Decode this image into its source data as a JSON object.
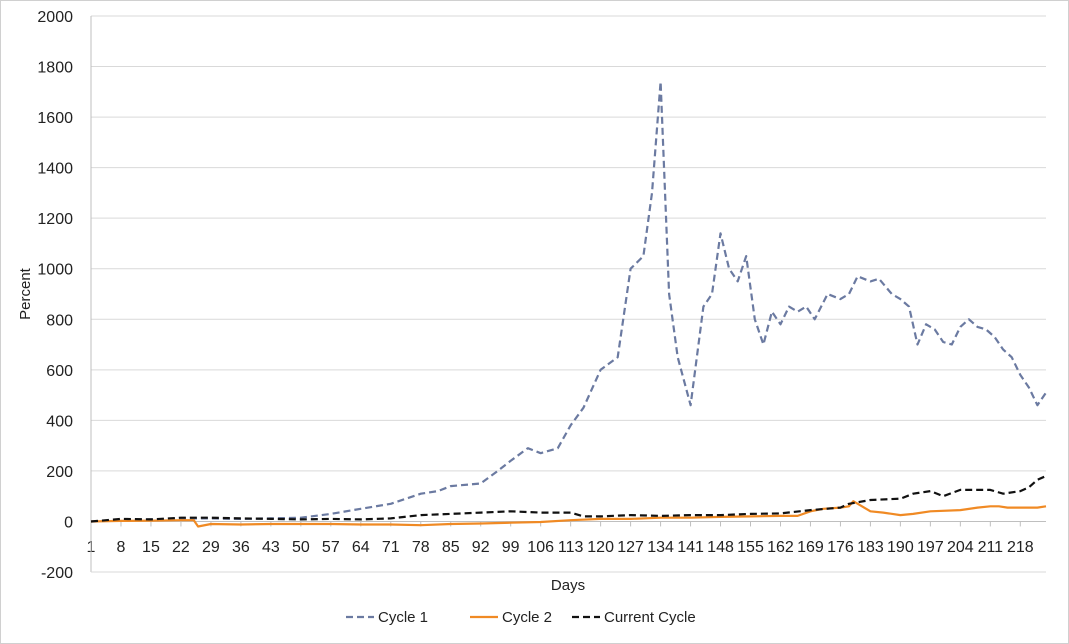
{
  "chart_data": {
    "type": "line",
    "xlabel": "Days",
    "ylabel": "Percent",
    "ylim": [
      -200,
      2000
    ],
    "xlim": [
      1,
      224
    ],
    "y_ticks": [
      -200,
      0,
      200,
      400,
      600,
      800,
      1000,
      1200,
      1400,
      1600,
      1800,
      2000
    ],
    "x_ticks": [
      1,
      8,
      15,
      22,
      29,
      36,
      43,
      50,
      57,
      64,
      71,
      78,
      85,
      92,
      99,
      106,
      113,
      120,
      127,
      134,
      141,
      148,
      155,
      162,
      169,
      176,
      183,
      190,
      197,
      204,
      211,
      218
    ],
    "grid": "horizontal",
    "legend_position": "bottom",
    "series": [
      {
        "name": "Cycle 1",
        "color": "#6b7aa1",
        "dash": "dashed",
        "x": [
          1,
          8,
          15,
          22,
          29,
          36,
          43,
          50,
          57,
          64,
          71,
          78,
          82,
          85,
          92,
          96,
          99,
          103,
          106,
          110,
          113,
          116,
          120,
          124,
          127,
          130,
          132,
          134,
          136,
          138,
          141,
          144,
          146,
          148,
          150,
          152,
          154,
          156,
          158,
          160,
          162,
          164,
          166,
          168,
          170,
          173,
          176,
          178,
          180,
          183,
          185,
          188,
          190,
          192,
          194,
          196,
          198,
          200,
          202,
          204,
          206,
          208,
          210,
          212,
          214,
          216,
          218,
          220,
          222,
          224
        ],
        "y": [
          0,
          5,
          8,
          12,
          12,
          10,
          12,
          15,
          30,
          50,
          70,
          110,
          120,
          140,
          150,
          200,
          240,
          290,
          270,
          290,
          380,
          450,
          600,
          650,
          1000,
          1050,
          1300,
          1740,
          900,
          650,
          460,
          850,
          900,
          1140,
          1000,
          950,
          1050,
          800,
          700,
          830,
          780,
          850,
          830,
          850,
          800,
          900,
          880,
          900,
          970,
          950,
          960,
          900,
          880,
          850,
          700,
          780,
          760,
          710,
          700,
          770,
          800,
          770,
          760,
          730,
          680,
          650,
          580,
          530,
          460,
          510
        ]
      },
      {
        "name": "Cycle 2",
        "color": "#f08a24",
        "dash": "solid",
        "x": [
          1,
          8,
          15,
          22,
          25,
          26,
          29,
          36,
          43,
          50,
          57,
          64,
          71,
          78,
          85,
          92,
          99,
          106,
          113,
          120,
          127,
          134,
          141,
          148,
          155,
          162,
          166,
          169,
          172,
          176,
          178,
          179,
          183,
          186,
          190,
          193,
          197,
          204,
          208,
          211,
          213,
          215,
          218,
          222,
          224
        ],
        "y": [
          0,
          2,
          3,
          5,
          5,
          -20,
          -10,
          -12,
          -10,
          -10,
          -10,
          -12,
          -12,
          -15,
          -10,
          -8,
          -5,
          -2,
          5,
          10,
          10,
          15,
          15,
          18,
          20,
          22,
          22,
          40,
          50,
          55,
          60,
          80,
          40,
          35,
          25,
          30,
          40,
          45,
          55,
          60,
          60,
          55,
          55,
          55,
          60
        ]
      },
      {
        "name": "Current Cycle",
        "color": "#111111",
        "dash": "dashed",
        "x": [
          1,
          8,
          15,
          22,
          29,
          36,
          43,
          50,
          57,
          64,
          71,
          78,
          85,
          92,
          99,
          106,
          113,
          116,
          120,
          127,
          134,
          141,
          148,
          155,
          162,
          169,
          176,
          178,
          183,
          190,
          193,
          197,
          200,
          204,
          211,
          214,
          218,
          220,
          222,
          224
        ],
        "y": [
          0,
          10,
          8,
          15,
          15,
          12,
          10,
          8,
          10,
          8,
          12,
          25,
          30,
          35,
          40,
          35,
          35,
          20,
          20,
          25,
          22,
          25,
          25,
          30,
          32,
          45,
          55,
          70,
          85,
          90,
          110,
          120,
          100,
          125,
          125,
          110,
          120,
          135,
          165,
          180
        ]
      }
    ]
  }
}
